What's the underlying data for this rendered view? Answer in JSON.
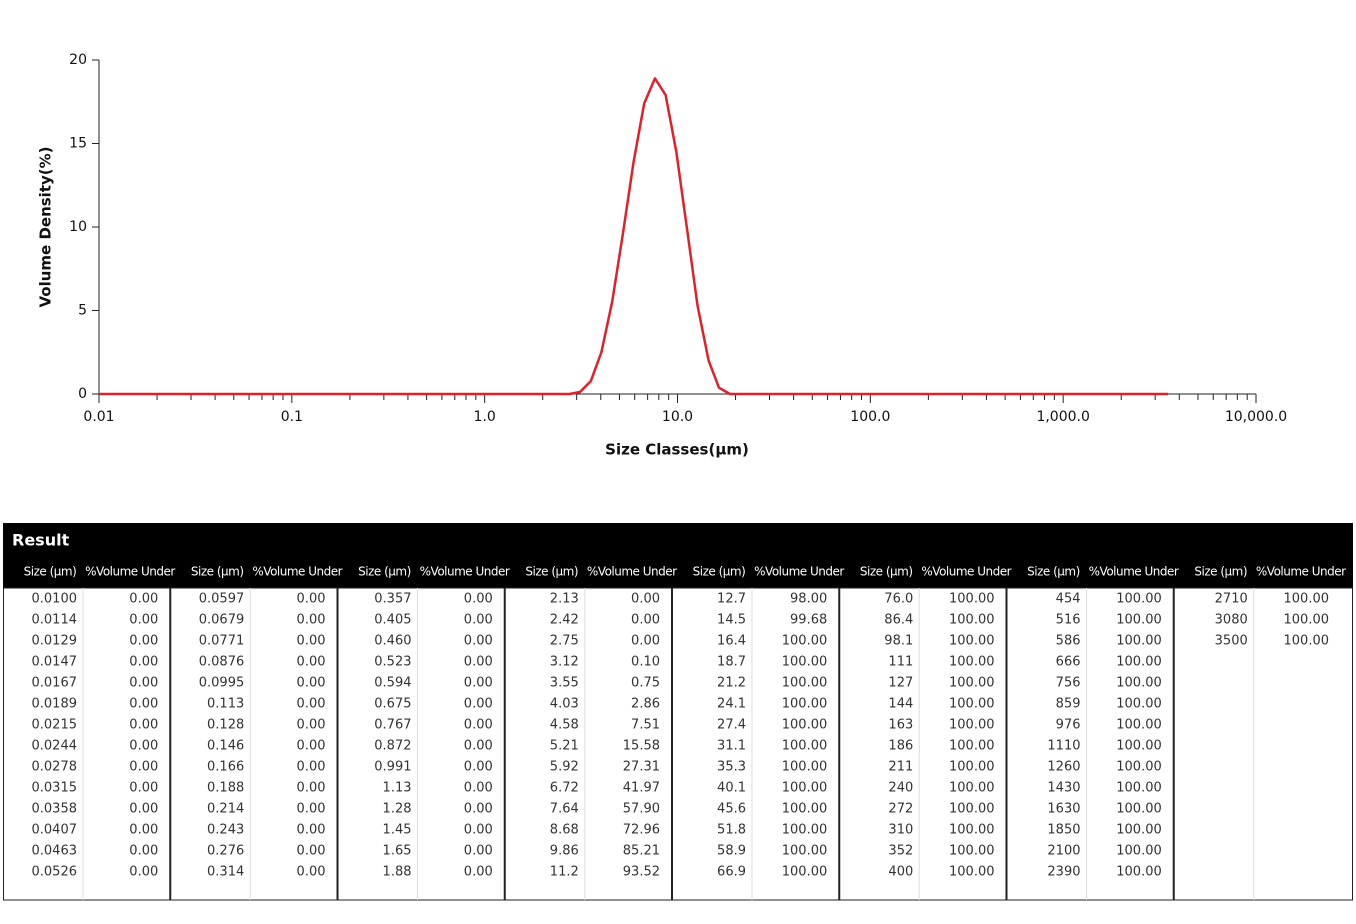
{
  "chart_data": {
    "type": "line",
    "xlabel": "Size Classes(μm)",
    "ylabel": "Volume Density(%)",
    "x": [
      0.01,
      2.42,
      2.75,
      3.12,
      3.55,
      4.03,
      4.58,
      5.21,
      5.92,
      6.72,
      7.64,
      8.68,
      9.86,
      11.2,
      12.7,
      14.5,
      16.4,
      18.7,
      3500
    ],
    "values": [
      0,
      0,
      0,
      0.12,
      0.77,
      2.5,
      5.5,
      9.6,
      13.9,
      17.4,
      18.9,
      17.9,
      14.5,
      9.9,
      5.3,
      2.0,
      0.38,
      0,
      0
    ],
    "color": "#e0202a",
    "xscale": "log",
    "xlim": [
      0.01,
      10000
    ],
    "ylim": [
      0,
      20
    ],
    "xticks": [
      0.01,
      0.1,
      {
        "value": 1,
        "label": "1.0"
      },
      {
        "value": 10,
        "label": "10.0"
      },
      {
        "value": 100,
        "label": "100.0"
      },
      {
        "value": 1000,
        "label": "1,000.0"
      },
      {
        "value": 10000,
        "label": "10,000.0"
      }
    ],
    "xminorticks": [
      0.02,
      0.03,
      0.04,
      0.05,
      0.06,
      0.07,
      0.08,
      0.09,
      0.2,
      0.3,
      0.4,
      0.5,
      0.6,
      0.7,
      0.8,
      0.9,
      2,
      3,
      4,
      5,
      6,
      7,
      8,
      9,
      20,
      30,
      40,
      50,
      60,
      70,
      80,
      90,
      200,
      300,
      400,
      500,
      600,
      700,
      800,
      900,
      2000,
      3000,
      4000,
      5000,
      6000,
      7000,
      8000,
      9000
    ],
    "yticks": [
      0,
      5,
      10,
      15,
      20
    ]
  },
  "table": {
    "title": "Result",
    "groups": [
      {
        "headers": [
          "Size (μm)",
          "%Volume Under"
        ],
        "rows": [
          [
            "0.0100",
            "0.00"
          ],
          [
            "0.0114",
            "0.00"
          ],
          [
            "0.0129",
            "0.00"
          ],
          [
            "0.0147",
            "0.00"
          ],
          [
            "0.0167",
            "0.00"
          ],
          [
            "0.0189",
            "0.00"
          ],
          [
            "0.0215",
            "0.00"
          ],
          [
            "0.0244",
            "0.00"
          ],
          [
            "0.0278",
            "0.00"
          ],
          [
            "0.0315",
            "0.00"
          ],
          [
            "0.0358",
            "0.00"
          ],
          [
            "0.0407",
            "0.00"
          ],
          [
            "0.0463",
            "0.00"
          ],
          [
            "0.0526",
            "0.00"
          ]
        ]
      },
      {
        "headers": [
          "Size (μm)",
          "%Volume Under"
        ],
        "rows": [
          [
            "0.0597",
            "0.00"
          ],
          [
            "0.0679",
            "0.00"
          ],
          [
            "0.0771",
            "0.00"
          ],
          [
            "0.0876",
            "0.00"
          ],
          [
            "0.0995",
            "0.00"
          ],
          [
            "0.113",
            "0.00"
          ],
          [
            "0.128",
            "0.00"
          ],
          [
            "0.146",
            "0.00"
          ],
          [
            "0.166",
            "0.00"
          ],
          [
            "0.188",
            "0.00"
          ],
          [
            "0.214",
            "0.00"
          ],
          [
            "0.243",
            "0.00"
          ],
          [
            "0.276",
            "0.00"
          ],
          [
            "0.314",
            "0.00"
          ]
        ]
      },
      {
        "headers": [
          "Size (μm)",
          "%Volume Under"
        ],
        "rows": [
          [
            "0.357",
            "0.00"
          ],
          [
            "0.405",
            "0.00"
          ],
          [
            "0.460",
            "0.00"
          ],
          [
            "0.523",
            "0.00"
          ],
          [
            "0.594",
            "0.00"
          ],
          [
            "0.675",
            "0.00"
          ],
          [
            "0.767",
            "0.00"
          ],
          [
            "0.872",
            "0.00"
          ],
          [
            "0.991",
            "0.00"
          ],
          [
            "1.13",
            "0.00"
          ],
          [
            "1.28",
            "0.00"
          ],
          [
            "1.45",
            "0.00"
          ],
          [
            "1.65",
            "0.00"
          ],
          [
            "1.88",
            "0.00"
          ]
        ]
      },
      {
        "headers": [
          "Size (μm)",
          "%Volume Under"
        ],
        "rows": [
          [
            "2.13",
            "0.00"
          ],
          [
            "2.42",
            "0.00"
          ],
          [
            "2.75",
            "0.00"
          ],
          [
            "3.12",
            "0.10"
          ],
          [
            "3.55",
            "0.75"
          ],
          [
            "4.03",
            "2.86"
          ],
          [
            "4.58",
            "7.51"
          ],
          [
            "5.21",
            "15.58"
          ],
          [
            "5.92",
            "27.31"
          ],
          [
            "6.72",
            "41.97"
          ],
          [
            "7.64",
            "57.90"
          ],
          [
            "8.68",
            "72.96"
          ],
          [
            "9.86",
            "85.21"
          ],
          [
            "11.2",
            "93.52"
          ]
        ]
      },
      {
        "headers": [
          "Size (μm)",
          "%Volume Under"
        ],
        "rows": [
          [
            "12.7",
            "98.00"
          ],
          [
            "14.5",
            "99.68"
          ],
          [
            "16.4",
            "100.00"
          ],
          [
            "18.7",
            "100.00"
          ],
          [
            "21.2",
            "100.00"
          ],
          [
            "24.1",
            "100.00"
          ],
          [
            "27.4",
            "100.00"
          ],
          [
            "31.1",
            "100.00"
          ],
          [
            "35.3",
            "100.00"
          ],
          [
            "40.1",
            "100.00"
          ],
          [
            "45.6",
            "100.00"
          ],
          [
            "51.8",
            "100.00"
          ],
          [
            "58.9",
            "100.00"
          ],
          [
            "66.9",
            "100.00"
          ]
        ]
      },
      {
        "headers": [
          "Size (μm)",
          "%Volume Under"
        ],
        "rows": [
          [
            "76.0",
            "100.00"
          ],
          [
            "86.4",
            "100.00"
          ],
          [
            "98.1",
            "100.00"
          ],
          [
            "111",
            "100.00"
          ],
          [
            "127",
            "100.00"
          ],
          [
            "144",
            "100.00"
          ],
          [
            "163",
            "100.00"
          ],
          [
            "186",
            "100.00"
          ],
          [
            "211",
            "100.00"
          ],
          [
            "240",
            "100.00"
          ],
          [
            "272",
            "100.00"
          ],
          [
            "310",
            "100.00"
          ],
          [
            "352",
            "100.00"
          ],
          [
            "400",
            "100.00"
          ]
        ]
      },
      {
        "headers": [
          "Size (μm)",
          "%Volume Under"
        ],
        "rows": [
          [
            "454",
            "100.00"
          ],
          [
            "516",
            "100.00"
          ],
          [
            "586",
            "100.00"
          ],
          [
            "666",
            "100.00"
          ],
          [
            "756",
            "100.00"
          ],
          [
            "859",
            "100.00"
          ],
          [
            "976",
            "100.00"
          ],
          [
            "1110",
            "100.00"
          ],
          [
            "1260",
            "100.00"
          ],
          [
            "1430",
            "100.00"
          ],
          [
            "1630",
            "100.00"
          ],
          [
            "1850",
            "100.00"
          ],
          [
            "2100",
            "100.00"
          ],
          [
            "2390",
            "100.00"
          ]
        ]
      },
      {
        "headers": [
          "Size (μm)",
          "%Volume Under"
        ],
        "rows": [
          [
            "2710",
            "100.00"
          ],
          [
            "3080",
            "100.00"
          ],
          [
            "3500",
            "100.00"
          ]
        ]
      }
    ]
  }
}
